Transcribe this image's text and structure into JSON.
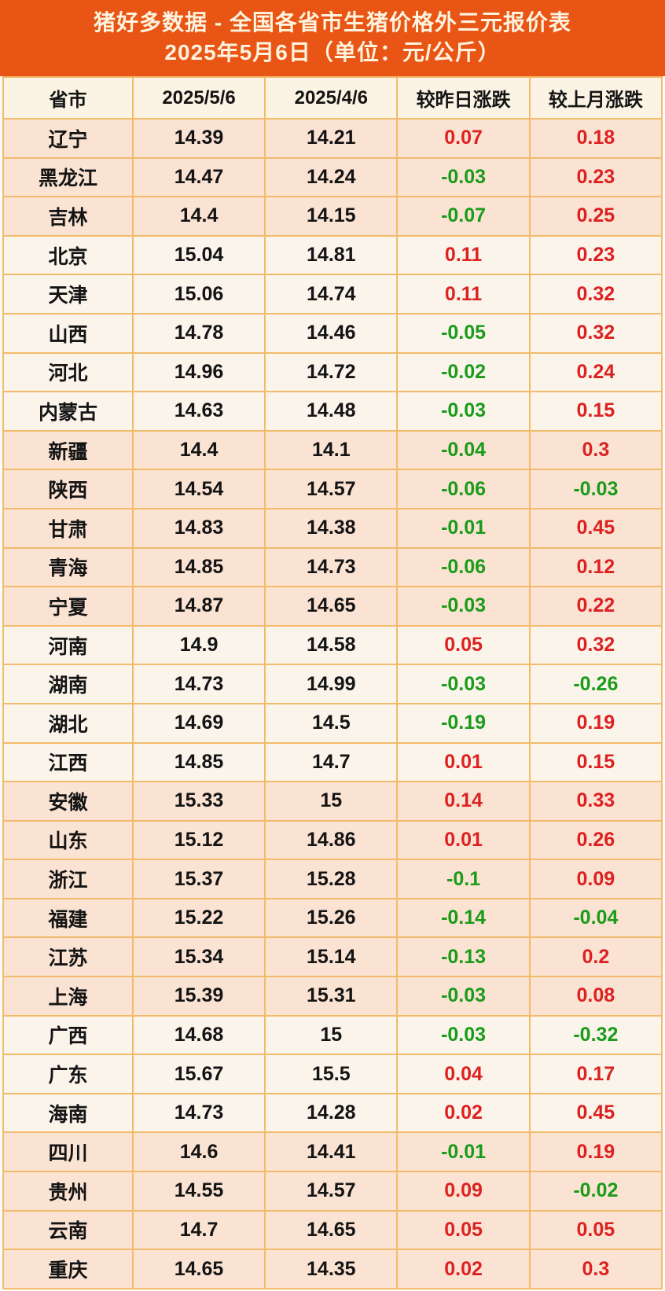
{
  "banner": {
    "title_line1": "猪好多数据 - 全国各省市生猪价格外三元报价表",
    "title_line2": "2025年5月6日（单位：元/公斤）"
  },
  "chart_data": {
    "type": "table",
    "title": "猪好多数据 - 全国各省市生猪价格外三元报价表",
    "subtitle": "2025年5月6日（单位：元/公斤）",
    "unit": "元/公斤",
    "columns": [
      "省市",
      "2025/5/6",
      "2025/4/6",
      "较昨日涨跌",
      "较上月涨跌"
    ],
    "rows": [
      {
        "province": "辽宁",
        "today": "14.39",
        "prev": "14.21",
        "day_change": "0.07",
        "month_change": "0.18",
        "group": "peach"
      },
      {
        "province": "黑龙江",
        "today": "14.47",
        "prev": "14.24",
        "day_change": "-0.03",
        "month_change": "0.23",
        "group": "peach"
      },
      {
        "province": "吉林",
        "today": "14.4",
        "prev": "14.15",
        "day_change": "-0.07",
        "month_change": "0.25",
        "group": "peach"
      },
      {
        "province": "北京",
        "today": "15.04",
        "prev": "14.81",
        "day_change": "0.11",
        "month_change": "0.23",
        "group": "cream"
      },
      {
        "province": "天津",
        "today": "15.06",
        "prev": "14.74",
        "day_change": "0.11",
        "month_change": "0.32",
        "group": "cream"
      },
      {
        "province": "山西",
        "today": "14.78",
        "prev": "14.46",
        "day_change": "-0.05",
        "month_change": "0.32",
        "group": "cream"
      },
      {
        "province": "河北",
        "today": "14.96",
        "prev": "14.72",
        "day_change": "-0.02",
        "month_change": "0.24",
        "group": "cream"
      },
      {
        "province": "内蒙古",
        "today": "14.63",
        "prev": "14.48",
        "day_change": "-0.03",
        "month_change": "0.15",
        "group": "cream"
      },
      {
        "province": "新疆",
        "today": "14.4",
        "prev": "14.1",
        "day_change": "-0.04",
        "month_change": "0.3",
        "group": "peach"
      },
      {
        "province": "陕西",
        "today": "14.54",
        "prev": "14.57",
        "day_change": "-0.06",
        "month_change": "-0.03",
        "group": "peach"
      },
      {
        "province": "甘肃",
        "today": "14.83",
        "prev": "14.38",
        "day_change": "-0.01",
        "month_change": "0.45",
        "group": "peach"
      },
      {
        "province": "青海",
        "today": "14.85",
        "prev": "14.73",
        "day_change": "-0.06",
        "month_change": "0.12",
        "group": "peach"
      },
      {
        "province": "宁夏",
        "today": "14.87",
        "prev": "14.65",
        "day_change": "-0.03",
        "month_change": "0.22",
        "group": "peach"
      },
      {
        "province": "河南",
        "today": "14.9",
        "prev": "14.58",
        "day_change": "0.05",
        "month_change": "0.32",
        "group": "cream"
      },
      {
        "province": "湖南",
        "today": "14.73",
        "prev": "14.99",
        "day_change": "-0.03",
        "month_change": "-0.26",
        "group": "cream"
      },
      {
        "province": "湖北",
        "today": "14.69",
        "prev": "14.5",
        "day_change": "-0.19",
        "month_change": "0.19",
        "group": "cream"
      },
      {
        "province": "江西",
        "today": "14.85",
        "prev": "14.7",
        "day_change": "0.01",
        "month_change": "0.15",
        "group": "cream"
      },
      {
        "province": "安徽",
        "today": "15.33",
        "prev": "15",
        "day_change": "0.14",
        "month_change": "0.33",
        "group": "peach"
      },
      {
        "province": "山东",
        "today": "15.12",
        "prev": "14.86",
        "day_change": "0.01",
        "month_change": "0.26",
        "group": "peach"
      },
      {
        "province": "浙江",
        "today": "15.37",
        "prev": "15.28",
        "day_change": "-0.1",
        "month_change": "0.09",
        "group": "peach"
      },
      {
        "province": "福建",
        "today": "15.22",
        "prev": "15.26",
        "day_change": "-0.14",
        "month_change": "-0.04",
        "group": "peach"
      },
      {
        "province": "江苏",
        "today": "15.34",
        "prev": "15.14",
        "day_change": "-0.13",
        "month_change": "0.2",
        "group": "peach"
      },
      {
        "province": "上海",
        "today": "15.39",
        "prev": "15.31",
        "day_change": "-0.03",
        "month_change": "0.08",
        "group": "peach"
      },
      {
        "province": "广西",
        "today": "14.68",
        "prev": "15",
        "day_change": "-0.03",
        "month_change": "-0.32",
        "group": "cream"
      },
      {
        "province": "广东",
        "today": "15.67",
        "prev": "15.5",
        "day_change": "0.04",
        "month_change": "0.17",
        "group": "cream"
      },
      {
        "province": "海南",
        "today": "14.73",
        "prev": "14.28",
        "day_change": "0.02",
        "month_change": "0.45",
        "group": "cream"
      },
      {
        "province": "四川",
        "today": "14.6",
        "prev": "14.41",
        "day_change": "-0.01",
        "month_change": "0.19",
        "group": "peach"
      },
      {
        "province": "贵州",
        "today": "14.55",
        "prev": "14.57",
        "day_change": "0.09",
        "month_change": "-0.02",
        "group": "peach"
      },
      {
        "province": "云南",
        "today": "14.7",
        "prev": "14.65",
        "day_change": "0.05",
        "month_change": "0.05",
        "group": "peach"
      },
      {
        "province": "重庆",
        "today": "14.65",
        "prev": "14.35",
        "day_change": "0.02",
        "month_change": "0.3",
        "group": "peach"
      }
    ]
  },
  "colors": {
    "banner_bg": "#E95514",
    "banner_text": "#FDF3DE",
    "header_row_bg": "#FBF3E4",
    "row_peach_bg": "#FAE3D3",
    "row_cream_bg": "#FAF4EB",
    "border": "#F2BB6C",
    "positive": "#DD2121",
    "negative": "#1A9B1A",
    "text": "#141414"
  }
}
